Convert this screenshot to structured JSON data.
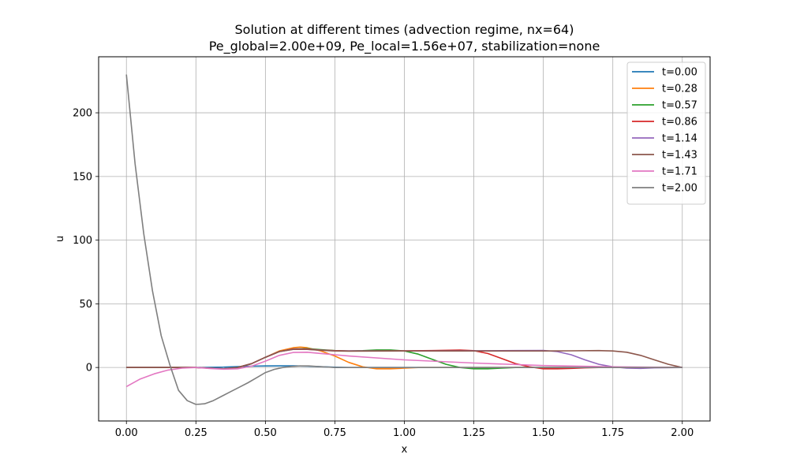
{
  "chart_data": {
    "type": "line",
    "title": "Solution at different times (advection regime, nx=64)",
    "subtitle": "Pe_global=2.00e+09, Pe_local=1.56e+07, stabilization=none",
    "xlabel": "x",
    "ylabel": "u",
    "xlim": [
      -0.1,
      2.1
    ],
    "ylim": [
      -42,
      244
    ],
    "xticks": [
      "0.00",
      "0.25",
      "0.50",
      "0.75",
      "1.00",
      "1.25",
      "1.50",
      "1.75",
      "2.00"
    ],
    "xtick_values": [
      0,
      0.25,
      0.5,
      0.75,
      1.0,
      1.25,
      1.5,
      1.75,
      2.0
    ],
    "yticks": [
      "0",
      "50",
      "100",
      "150",
      "200"
    ],
    "ytick_values": [
      0,
      50,
      100,
      150,
      200
    ],
    "grid": true,
    "legend_position": "top-right",
    "series": [
      {
        "name": "t=0.00",
        "color": "#1f77b4",
        "x": [
          0,
          0.25,
          0.35,
          0.4,
          0.45,
          0.5,
          0.55,
          0.6,
          0.65,
          0.7,
          0.75,
          0.8,
          0.9,
          1.0,
          1.5,
          2.0
        ],
        "y": [
          0,
          0,
          0.3,
          0.7,
          1.0,
          1.2,
          1.3,
          1.3,
          1.0,
          0.6,
          0.2,
          0,
          0,
          0,
          0,
          0
        ]
      },
      {
        "name": "t=0.28",
        "color": "#ff7f0e",
        "x": [
          0,
          0.25,
          0.3,
          0.35,
          0.4,
          0.45,
          0.5,
          0.55,
          0.6,
          0.625,
          0.65,
          0.7,
          0.75,
          0.8,
          0.85,
          0.9,
          0.95,
          1.0,
          1.05,
          1.1,
          1.2,
          1.5,
          2.0
        ],
        "y": [
          0,
          0,
          -0.5,
          -1,
          0,
          3,
          8,
          13,
          15.5,
          16,
          15.5,
          13,
          9,
          4,
          0.5,
          -1,
          -1,
          -0.5,
          0,
          0,
          0,
          0,
          0
        ]
      },
      {
        "name": "t=0.57",
        "color": "#2ca02c",
        "x": [
          0,
          0.25,
          0.3,
          0.35,
          0.4,
          0.45,
          0.5,
          0.55,
          0.6,
          0.65,
          0.7,
          0.75,
          0.8,
          0.85,
          0.9,
          0.95,
          1.0,
          1.05,
          1.1,
          1.15,
          1.2,
          1.25,
          1.3,
          1.35,
          1.4,
          1.5,
          2.0
        ],
        "y": [
          0,
          0,
          -0.5,
          -1,
          0,
          3,
          8,
          12.5,
          14.5,
          14.8,
          14,
          13.3,
          13,
          13.2,
          13.8,
          13.8,
          13,
          10.5,
          6.5,
          2.5,
          0,
          -1,
          -1,
          -0.5,
          0,
          0,
          0
        ]
      },
      {
        "name": "t=0.86",
        "color": "#d62728",
        "x": [
          0,
          0.25,
          0.3,
          0.35,
          0.4,
          0.45,
          0.5,
          0.55,
          0.6,
          0.65,
          0.7,
          0.75,
          0.8,
          0.9,
          1.0,
          1.1,
          1.2,
          1.25,
          1.3,
          1.35,
          1.4,
          1.45,
          1.5,
          1.55,
          1.6,
          1.65,
          1.7,
          2.0
        ],
        "y": [
          0,
          0,
          -0.5,
          -1,
          0,
          3,
          8,
          12.5,
          14.5,
          14.5,
          13.7,
          13.2,
          13,
          13,
          13.1,
          13.3,
          13.7,
          13.2,
          11,
          7,
          3,
          0.5,
          -1,
          -1,
          -0.7,
          -0.3,
          0,
          0
        ]
      },
      {
        "name": "t=1.14",
        "color": "#9467bd",
        "x": [
          0,
          0.25,
          0.3,
          0.35,
          0.4,
          0.45,
          0.5,
          0.55,
          0.6,
          0.65,
          0.7,
          0.75,
          0.8,
          0.9,
          1.0,
          1.2,
          1.4,
          1.5,
          1.55,
          1.6,
          1.65,
          1.7,
          1.75,
          1.8,
          1.85,
          1.9,
          2.0
        ],
        "y": [
          0,
          0,
          -0.5,
          -1,
          0,
          3,
          8,
          12.5,
          14.3,
          14.3,
          13.6,
          13.1,
          13,
          13,
          13,
          13.1,
          13.3,
          13.4,
          12.5,
          10,
          6,
          2.5,
          0.5,
          -0.5,
          -0.7,
          -0.3,
          0
        ]
      },
      {
        "name": "t=1.43",
        "color": "#8c564b",
        "x": [
          0,
          0.25,
          0.3,
          0.35,
          0.4,
          0.45,
          0.5,
          0.55,
          0.6,
          0.65,
          0.7,
          0.75,
          0.8,
          1.0,
          1.25,
          1.5,
          1.6,
          1.7,
          1.75,
          1.8,
          1.85,
          1.9,
          1.95,
          2.0
        ],
        "y": [
          0,
          0,
          -0.5,
          -1,
          0,
          3,
          8,
          12.5,
          14.2,
          14.2,
          13.5,
          13,
          12.8,
          13,
          13,
          13,
          13.1,
          13.3,
          13,
          12,
          9.5,
          6,
          2.5,
          0
        ]
      },
      {
        "name": "t=1.71",
        "color": "#e377c2",
        "x": [
          0,
          0.05,
          0.1,
          0.15,
          0.2,
          0.25,
          0.3,
          0.35,
          0.4,
          0.45,
          0.5,
          0.55,
          0.6,
          0.65,
          0.7,
          0.75,
          0.8,
          1.0,
          1.25,
          1.5,
          1.75,
          2.0
        ],
        "y": [
          -15,
          -9,
          -5,
          -2,
          -0.5,
          0,
          -0.8,
          -1.3,
          -1,
          1,
          5,
          9.5,
          11.8,
          12,
          11,
          10,
          9,
          6,
          3.5,
          1.5,
          0.5,
          0
        ]
      },
      {
        "name": "t=2.00",
        "color": "#7f7f7f",
        "x": [
          0,
          0.03125,
          0.0625,
          0.09375,
          0.125,
          0.15625,
          0.1875,
          0.21875,
          0.25,
          0.28125,
          0.3125,
          0.34375,
          0.375,
          0.40625,
          0.4375,
          0.46875,
          0.5,
          0.53125,
          0.5625,
          0.59375,
          0.625,
          0.65625,
          0.6875,
          0.71875,
          0.75,
          0.8,
          1.0,
          1.5,
          2.0
        ],
        "y": [
          230,
          160,
          105,
          60,
          25,
          2,
          -18,
          -26,
          -29,
          -28.5,
          -26,
          -22.5,
          -19,
          -15.5,
          -12,
          -8,
          -4,
          -1.5,
          0,
          0.8,
          1.2,
          1.2,
          0.8,
          0.4,
          0,
          0,
          0,
          0,
          0
        ]
      }
    ]
  }
}
